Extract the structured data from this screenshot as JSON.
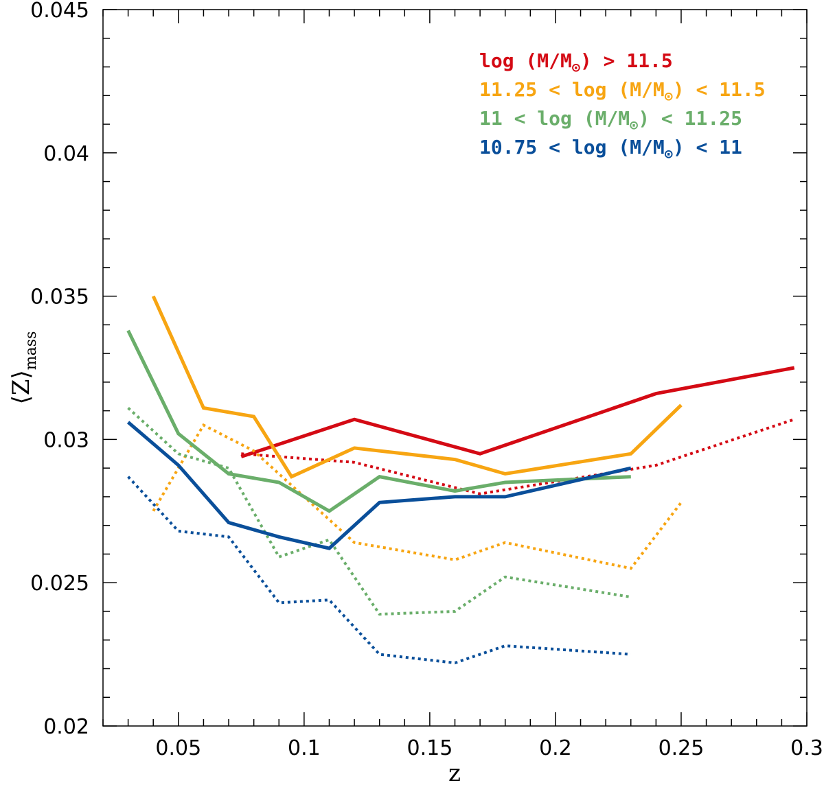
{
  "chart_data": {
    "type": "line",
    "title": "",
    "xlabel": "z",
    "ylabel": "Z",
    "ylabel_subscript": "mass",
    "xlim": [
      0.02,
      0.3
    ],
    "ylim": [
      0.02,
      0.045
    ],
    "x_ticks": [
      0.05,
      0.1,
      0.15,
      0.2,
      0.25,
      0.3
    ],
    "x_tick_labels": [
      "0.05",
      "0.1",
      "0.15",
      "0.2",
      "0.25",
      "0.3"
    ],
    "y_ticks": [
      0.02,
      0.025,
      0.03,
      0.035,
      0.04,
      0.045
    ],
    "y_tick_labels": [
      "0.02",
      "0.025",
      "0.03",
      "0.035",
      "0.04",
      "0.045"
    ],
    "grid": false,
    "legend_position": "top-right",
    "colors": {
      "red": "#d40a14",
      "orange": "#f7a512",
      "green": "#6aae6a",
      "blue": "#0a4f9a"
    },
    "series": [
      {
        "name": "log (M/M⊙) > 11.5",
        "legend": {
          "prefix": "log (M/M",
          "sub": "⊙",
          "suffix": ") > 11.5"
        },
        "color_key": "red",
        "solid": {
          "x": [
            0.075,
            0.12,
            0.17,
            0.24,
            0.295
          ],
          "y": [
            0.0294,
            0.0307,
            0.0295,
            0.0316,
            0.0325
          ]
        },
        "dotted": {
          "x": [
            0.075,
            0.12,
            0.17,
            0.24,
            0.295
          ],
          "y": [
            0.0295,
            0.0292,
            0.0281,
            0.0291,
            0.0307
          ]
        }
      },
      {
        "name": "11.25 < log (M/M⊙) < 11.5",
        "legend": {
          "prefix": "11.25 < log (M/M",
          "sub": "⊙",
          "suffix": ") < 11.5"
        },
        "color_key": "orange",
        "solid": {
          "x": [
            0.04,
            0.06,
            0.08,
            0.095,
            0.12,
            0.16,
            0.18,
            0.23,
            0.25
          ],
          "y": [
            0.035,
            0.0311,
            0.0308,
            0.0287,
            0.0297,
            0.0293,
            0.0288,
            0.0295,
            0.0312
          ]
        },
        "dotted": {
          "x": [
            0.04,
            0.06,
            0.08,
            0.12,
            0.16,
            0.18,
            0.23,
            0.25
          ],
          "y": [
            0.0275,
            0.0305,
            0.0296,
            0.0264,
            0.0258,
            0.0264,
            0.0255,
            0.0278
          ]
        }
      },
      {
        "name": "11 < log (M/M⊙) < 11.25",
        "legend": {
          "prefix": "11 < log (M/M",
          "sub": "⊙",
          "suffix": ") < 11.25"
        },
        "color_key": "green",
        "solid": {
          "x": [
            0.03,
            0.05,
            0.07,
            0.09,
            0.11,
            0.13,
            0.16,
            0.18,
            0.23
          ],
          "y": [
            0.0338,
            0.0302,
            0.0288,
            0.0285,
            0.0275,
            0.0287,
            0.0282,
            0.0285,
            0.0287
          ]
        },
        "dotted": {
          "x": [
            0.03,
            0.05,
            0.07,
            0.09,
            0.11,
            0.13,
            0.16,
            0.18,
            0.23
          ],
          "y": [
            0.0311,
            0.0295,
            0.029,
            0.0259,
            0.0265,
            0.0239,
            0.024,
            0.0252,
            0.0245
          ]
        }
      },
      {
        "name": "10.75 < log (M/M⊙) < 11",
        "legend": {
          "prefix": "10.75 < log (M/M",
          "sub": "⊙",
          "suffix": ") < 11"
        },
        "color_key": "blue",
        "solid": {
          "x": [
            0.03,
            0.05,
            0.07,
            0.09,
            0.11,
            0.13,
            0.16,
            0.18,
            0.23
          ],
          "y": [
            0.0306,
            0.0291,
            0.0271,
            0.0266,
            0.0262,
            0.0278,
            0.028,
            0.028,
            0.029
          ]
        },
        "dotted": {
          "x": [
            0.03,
            0.05,
            0.07,
            0.09,
            0.11,
            0.13,
            0.16,
            0.18,
            0.23
          ],
          "y": [
            0.0287,
            0.0268,
            0.0266,
            0.0243,
            0.0244,
            0.0225,
            0.0222,
            0.0228,
            0.0225
          ]
        }
      }
    ]
  }
}
